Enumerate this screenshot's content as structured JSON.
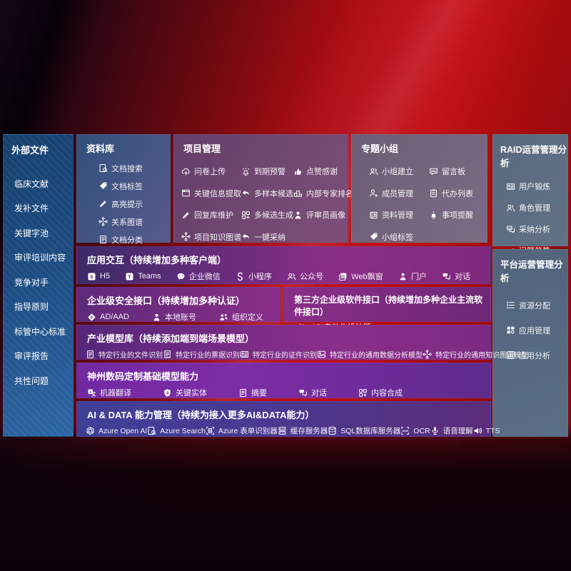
{
  "sidebar": {
    "title": "外部文件",
    "items": [
      "临床文献",
      "发补文件",
      "关键字池",
      "审评培训内容",
      "竞争对手",
      "指导原则",
      "标管中心标准",
      "审评报告",
      "共性问题"
    ]
  },
  "panels": {
    "library": {
      "title": "资料库",
      "items": [
        {
          "icon": "doc-search",
          "label": "文档搜索"
        },
        {
          "icon": "tag",
          "label": "文档标签"
        },
        {
          "icon": "pencil",
          "label": "高亮提示"
        },
        {
          "icon": "graph",
          "label": "关系图谱"
        },
        {
          "icon": "doc",
          "label": "文档分类"
        }
      ]
    },
    "project": {
      "title": "项目管理",
      "columns": [
        [
          {
            "icon": "cloud-up",
            "label": "问卷上传"
          },
          {
            "icon": "window",
            "label": "关键信息提取"
          },
          {
            "icon": "pencil",
            "label": "回复库维护"
          },
          {
            "icon": "graph",
            "label": "项目知识图谱"
          }
        ],
        [
          {
            "icon": "alarm",
            "label": "到期预警"
          },
          {
            "icon": "reply",
            "label": "多样本候选"
          },
          {
            "icon": "puzzle",
            "label": "多候选生成"
          },
          {
            "icon": "reply",
            "label": "一键采纳"
          }
        ],
        [
          {
            "icon": "thumb",
            "label": "点赞感谢"
          },
          {
            "icon": "podium",
            "label": "内部专家排名"
          },
          {
            "icon": "person",
            "label": "评审员画像"
          }
        ]
      ]
    },
    "groups": {
      "title": "专题小组",
      "columns": [
        [
          {
            "icon": "people",
            "label": "小组建立"
          },
          {
            "icon": "user-plus",
            "label": "成员管理"
          },
          {
            "icon": "album",
            "label": "资料管理"
          },
          {
            "icon": "tag",
            "label": "小组标签"
          }
        ],
        [
          {
            "icon": "bbs",
            "label": "留言板"
          },
          {
            "icon": "clipboard",
            "label": "代办列表"
          },
          {
            "icon": "bell",
            "label": "事项提醒"
          }
        ]
      ]
    },
    "raid": {
      "title": "RAID运营管理分析",
      "items": [
        {
          "icon": "idcard",
          "label": "用户锻炼"
        },
        {
          "icon": "roles",
          "label": "角色管理"
        },
        {
          "icon": "qa",
          "label": "采纳分析"
        },
        {
          "icon": "trend",
          "label": "问题趋势"
        }
      ]
    },
    "platform": {
      "title": "平台运营管理分析",
      "items": [
        {
          "icon": "list",
          "label": "资源分配"
        },
        {
          "icon": "grid",
          "label": "应用管理"
        },
        {
          "icon": "chart",
          "label": "应用分析"
        }
      ]
    },
    "interaction": {
      "title": "应用交互（持续增加多种客户端）",
      "items": [
        {
          "icon": "h5",
          "label": "H5"
        },
        {
          "icon": "teams",
          "label": "Teams"
        },
        {
          "icon": "wechat",
          "label": "企业微信"
        },
        {
          "icon": "mini",
          "label": "小程序"
        },
        {
          "icon": "people",
          "label": "公众号"
        },
        {
          "icon": "web",
          "label": "Web飘窗"
        },
        {
          "icon": "person",
          "label": "门户"
        },
        {
          "icon": "chat2",
          "label": "对话"
        }
      ]
    },
    "security": {
      "title": "企业级安全接口（持续增加多种认证）",
      "items": [
        {
          "icon": "shield",
          "label": "AD/AAD"
        },
        {
          "icon": "person",
          "label": "本地账号"
        },
        {
          "icon": "org",
          "label": "组织定义"
        }
      ]
    },
    "third_party": {
      "title": "第三方企业级软件接口（持续增加多种企业主流软件接口）",
      "items": [
        {
          "icon": "gear",
          "label": "API自动化设计器"
        }
      ]
    },
    "industry_models": {
      "title": "产业模型库（持续添加端到端场景模型）",
      "items": [
        {
          "icon": "doc",
          "label": "特定行业的文件识别"
        },
        {
          "icon": "receipt",
          "label": "特定行业的票据识别"
        },
        {
          "icon": "idcard",
          "label": "特定行业的证件识别"
        },
        {
          "icon": "image",
          "label": "特定行业的通用数据分析模型"
        },
        {
          "icon": "graph",
          "label": "特定行业的通用知识图谱模型"
        }
      ]
    },
    "base_models": {
      "title": "神州数码定制基础模型能力",
      "items": [
        {
          "icon": "translate",
          "label": "机器翻译"
        },
        {
          "icon": "entity",
          "label": "关键实体"
        },
        {
          "icon": "doc",
          "label": "摘要"
        },
        {
          "icon": "chat2",
          "label": "对话"
        },
        {
          "icon": "puzzle",
          "label": "内容合成"
        }
      ]
    },
    "ai_data": {
      "title": "AI & DATA 能力管理（持续为接入更多AI&DATA能力）",
      "items": [
        {
          "icon": "openai",
          "label": "Azure Open AI"
        },
        {
          "icon": "doc-search",
          "label": "Azure Search"
        },
        {
          "icon": "form",
          "label": "Azure 表单识别器"
        },
        {
          "icon": "cache",
          "label": "缓存服务器"
        },
        {
          "icon": "db",
          "label": "SQL数据库服务器"
        },
        {
          "icon": "ocr",
          "label": "OCR"
        },
        {
          "icon": "voice",
          "label": "语音理解"
        },
        {
          "icon": "tts",
          "label": "TTS"
        }
      ]
    }
  },
  "colors": {
    "bg_red": "#b00d11",
    "panel_purple": "#7b2d86",
    "panel_blue": "#1d4c82",
    "panel_grey": "#5d6b7e",
    "accent_indigo": "#434a9c"
  }
}
